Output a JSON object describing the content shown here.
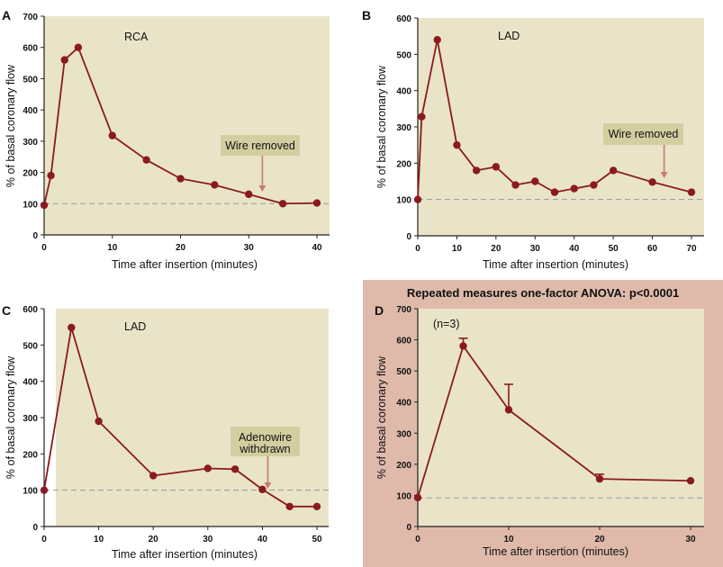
{
  "colors": {
    "plot_bg": "#e9e4c8",
    "series": "#8b1a1f",
    "annotation_bg": "#d3cea0",
    "arrow": "#c57b6c",
    "panel_d_bg": "#dfbaab",
    "baseline": "#999999"
  },
  "chart_data": [
    {
      "type": "line",
      "panel": "A",
      "label": "RCA",
      "xlabel": "Time after insertion (minutes)",
      "ylabel": "% of basal coronary flow",
      "xlim": [
        0,
        40
      ],
      "ylim": [
        0,
        700
      ],
      "xticks": [
        0,
        10,
        20,
        30,
        40
      ],
      "yticks": [
        0,
        100,
        200,
        300,
        400,
        500,
        600,
        700
      ],
      "baseline": 100,
      "x": [
        0,
        1,
        3,
        5,
        10,
        15,
        20,
        25,
        30,
        35,
        40
      ],
      "y": [
        95,
        190,
        560,
        600,
        318,
        240,
        180,
        160,
        130,
        100,
        102
      ],
      "annotation": {
        "lines": [
          "Wire removed"
        ],
        "x": 32
      }
    },
    {
      "type": "line",
      "panel": "B",
      "label": "LAD",
      "xlabel": "Time after insertion (minutes)",
      "ylabel": "% of basal coronary flow",
      "xlim": [
        0,
        70
      ],
      "ylim": [
        0,
        600
      ],
      "xticks": [
        0,
        10,
        20,
        30,
        40,
        50,
        60,
        70
      ],
      "yticks": [
        0,
        100,
        200,
        300,
        400,
        500,
        600
      ],
      "baseline": 100,
      "x": [
        0,
        1,
        5,
        10,
        15,
        20,
        25,
        30,
        35,
        40,
        45,
        50,
        60,
        70
      ],
      "y": [
        100,
        328,
        540,
        250,
        180,
        190,
        140,
        150,
        120,
        130,
        140,
        180,
        148,
        120
      ],
      "annotation": {
        "lines": [
          "Wire removed"
        ],
        "x": 63
      }
    },
    {
      "type": "line",
      "panel": "C",
      "label": "LAD",
      "xlabel": "Time after insertion (minutes)",
      "ylabel": "% of basal coronary flow",
      "xlim": [
        0,
        50
      ],
      "ylim": [
        0,
        600
      ],
      "xticks": [
        0,
        10,
        20,
        30,
        40,
        50
      ],
      "yticks": [
        0,
        100,
        200,
        300,
        400,
        500,
        600
      ],
      "baseline": 100,
      "x": [
        0,
        5,
        10,
        20,
        30,
        35,
        40,
        45,
        50
      ],
      "y": [
        100,
        548,
        290,
        140,
        160,
        158,
        102,
        55,
        55
      ],
      "annotation": {
        "lines": [
          "Adenowire",
          "withdrawn"
        ],
        "x": 41
      }
    },
    {
      "type": "line",
      "panel": "D",
      "label": "(n=3)",
      "title": "Repeated measures one-factor ANOVA: p<0.0001",
      "xlabel": "Time after insertion (minutes)",
      "ylabel": "% of basal coronary flow",
      "xlim": [
        0,
        30
      ],
      "ylim": [
        0,
        700
      ],
      "xticks": [
        0,
        10,
        20,
        30
      ],
      "yticks": [
        0,
        100,
        200,
        300,
        400,
        500,
        600,
        700
      ],
      "baseline": 92,
      "x": [
        0,
        5,
        10,
        20,
        30
      ],
      "y": [
        93,
        580,
        375,
        153,
        147
      ],
      "error_upper": [
        null,
        605,
        457,
        168,
        null
      ]
    }
  ]
}
